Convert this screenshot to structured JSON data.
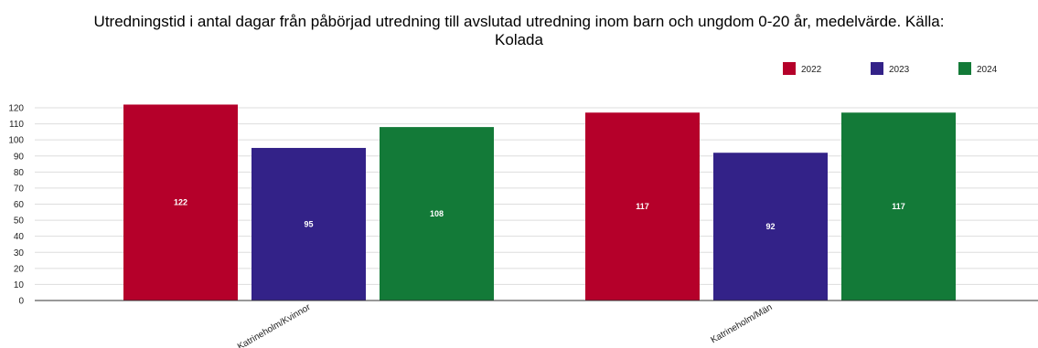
{
  "chart_data": {
    "type": "bar",
    "title": "Utredningstid i antal dagar från påbörjad utredning till avslutad utredning inom barn och ungdom 0-20 år, medelvärde. Källa: Kolada",
    "categories": [
      "Katrineholm/Kvinnor",
      "Katrineholm/Män"
    ],
    "series": [
      {
        "name": "2022",
        "color": "#b5002a",
        "values": [
          122,
          117
        ]
      },
      {
        "name": "2023",
        "color": "#332288",
        "values": [
          95,
          92
        ]
      },
      {
        "name": "2024",
        "color": "#137a38",
        "values": [
          108,
          117
        ]
      }
    ],
    "ylim": [
      0,
      120
    ],
    "yticks": [
      0,
      10,
      20,
      30,
      40,
      50,
      60,
      70,
      80,
      90,
      100,
      110,
      120
    ],
    "grid": true,
    "legend_position": "top-right",
    "data_labels": true
  }
}
